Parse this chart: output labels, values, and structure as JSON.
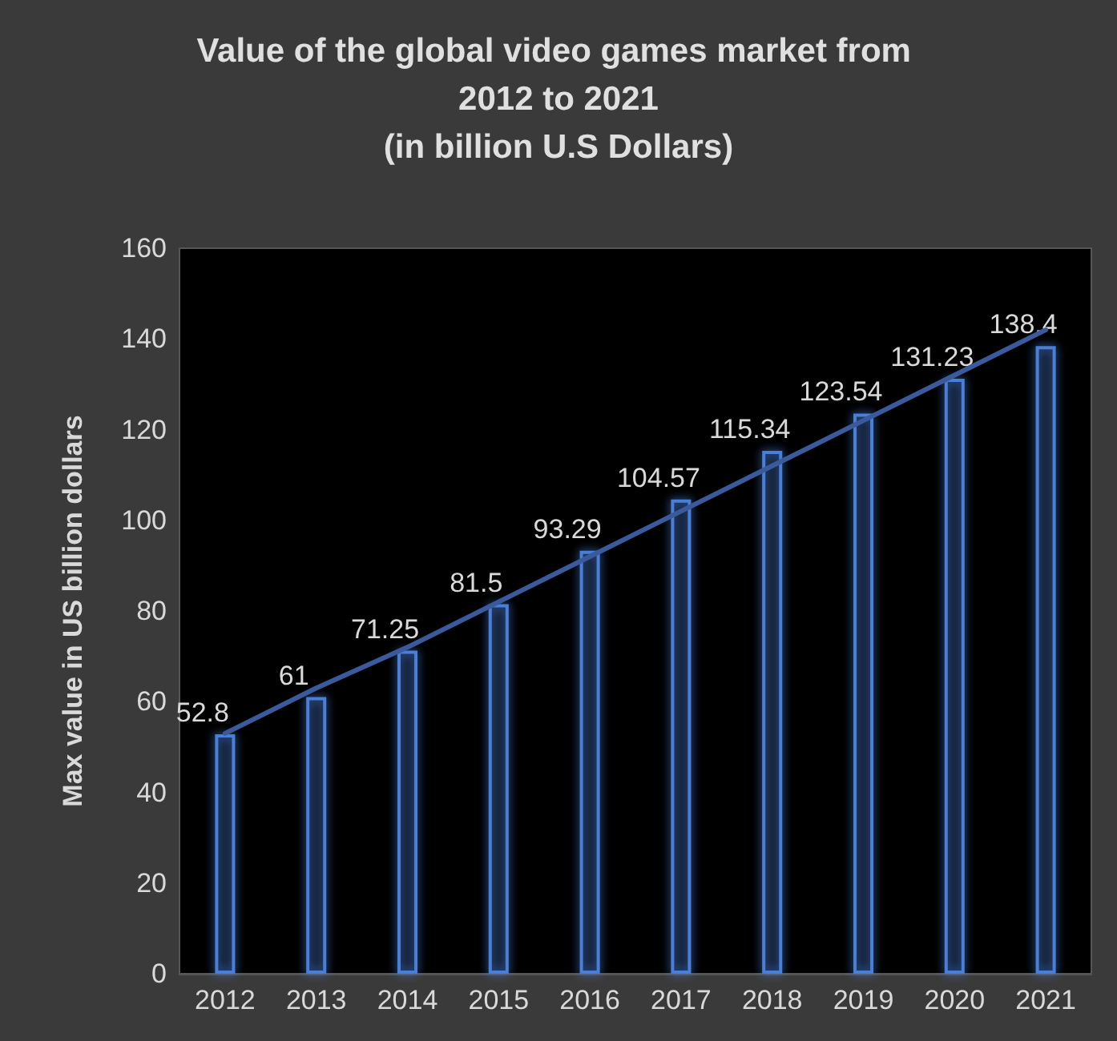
{
  "chart_data": {
    "type": "bar",
    "title": "Value of the global video games market from 2012 to 2021\n(in billion U.S Dollars)",
    "ylabel": "Max value in US billion dollars",
    "categories": [
      "2012",
      "2013",
      "2014",
      "2015",
      "2016",
      "2017",
      "2018",
      "2019",
      "2020",
      "2021"
    ],
    "series": [
      {
        "color": "#4a7fd8",
        "values": [
          52.8,
          61,
          71.25,
          81.5,
          93.29,
          104.57,
          115.34,
          123.54,
          131.23,
          138.4
        ],
        "value_labels": [
          "52.8",
          "61",
          "71.25",
          "81.5",
          "93.29",
          "104.57",
          "115.34",
          "123.54",
          "131.23",
          "138.4"
        ]
      },
      {
        "type": "line",
        "color": "#3a5a9c",
        "values": [
          53,
          63,
          72,
          82,
          92,
          102,
          112,
          122,
          132,
          142
        ]
      }
    ],
    "ylim": [
      0,
      160
    ],
    "yticks": [
      0,
      20,
      40,
      60,
      80,
      100,
      120,
      140,
      160
    ],
    "grid": false
  }
}
